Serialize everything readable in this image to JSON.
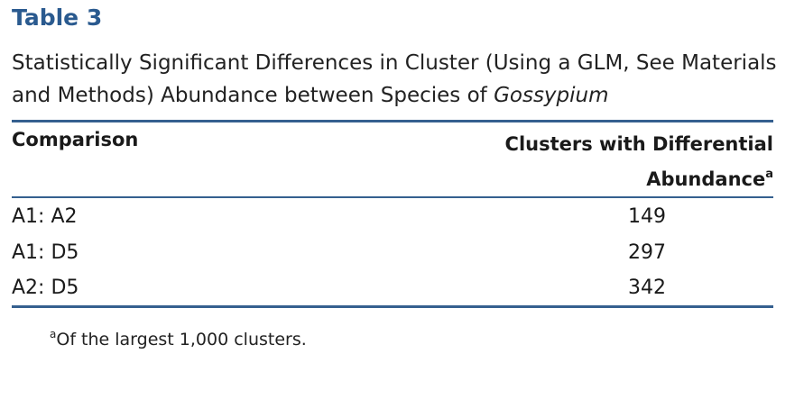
{
  "table": {
    "label": "Table 3",
    "caption_main": "Statistically Significant Differences in Cluster (Using a GLM, See Materials and Methods) Abundance between Species of ",
    "caption_italic": "Gossypium",
    "header": {
      "comparison": "Comparison",
      "value_line1": "Clusters with Differential",
      "value_line2": "Abundance",
      "value_footnote_mark": "a"
    },
    "rows": [
      {
        "comparison": "A1: A2",
        "value": "149"
      },
      {
        "comparison": "A1: D5",
        "value": "297"
      },
      {
        "comparison": "A2: D5",
        "value": "342"
      }
    ],
    "footnote": {
      "mark": "a",
      "text": "Of the largest 1,000 clusters."
    }
  },
  "colors": {
    "accent": "#2a5a8f",
    "rule": "#35608f"
  }
}
